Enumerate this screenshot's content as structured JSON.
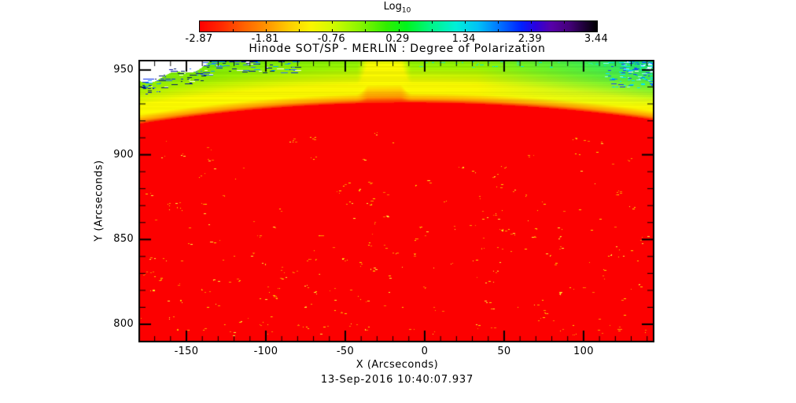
{
  "figure": {
    "background": "#ffffff",
    "colorbar": {
      "title_main": "Log",
      "title_sub": "10",
      "tick_labels": [
        "-2.87",
        "-1.81",
        "-0.76",
        "0.29",
        "1.34",
        "2.39",
        "3.44"
      ],
      "gradient_stops": [
        [
          0.0,
          "#ff0000"
        ],
        [
          0.05,
          "#ff2500"
        ],
        [
          0.11,
          "#ff6000"
        ],
        [
          0.167,
          "#ff9300"
        ],
        [
          0.22,
          "#ffc800"
        ],
        [
          0.28,
          "#fbf500"
        ],
        [
          0.333,
          "#d3fb00"
        ],
        [
          0.4,
          "#8df600"
        ],
        [
          0.47,
          "#30ee00"
        ],
        [
          0.52,
          "#00f51c"
        ],
        [
          0.58,
          "#00f583"
        ],
        [
          0.645,
          "#00efd8"
        ],
        [
          0.7,
          "#00c2f7"
        ],
        [
          0.755,
          "#0072ff"
        ],
        [
          0.81,
          "#0020ff"
        ],
        [
          0.845,
          "#2a00e0"
        ],
        [
          0.885,
          "#5700a8"
        ],
        [
          0.93,
          "#45007a"
        ],
        [
          0.965,
          "#20003c"
        ],
        [
          1.0,
          "#000000"
        ]
      ]
    },
    "plot": {
      "title": "Hinode SOT/SP - MERLIN : Degree of Polarization",
      "x_label": "X (Arcseconds)",
      "y_label": "Y (Arcseconds)",
      "footer": "13-Sep-2016 10:40:07.937"
    }
  },
  "chart_data": {
    "type": "heatmap",
    "title": "Hinode SOT/SP - MERLIN : Degree of Polarization",
    "xlabel": "X (Arcseconds)",
    "ylabel": "Y (Arcseconds)",
    "timestamp": "13-Sep-2016 10:40:07.937",
    "colorbar": {
      "label": "Log10",
      "range": [
        -2.87,
        3.44
      ],
      "tick_values": [
        -2.87,
        -1.81,
        -0.76,
        0.29,
        1.34,
        2.39,
        3.44
      ]
    },
    "xlim": [
      -180.2,
      144.6
    ],
    "ylim": [
      789.3,
      956.0
    ],
    "x_tick_values": [
      -150,
      -100,
      -50,
      0,
      50,
      100
    ],
    "y_tick_values": [
      950,
      900,
      850,
      800
    ],
    "minor_tick_step": 10,
    "grid": false,
    "legend": false,
    "description": "Solar limb scan: saturated red disk (low log10 degree of polarization) filling most of the frame below a curved limb near Y=930; yellow-to-green gradient above the limb; white saturated patch with blue speckle dashes at top-left; cyan/blue speckle dashes at top-right; a faint vertical plume near X=-40; sparse yellow magnetic-network speckles across the red disk.",
    "image_model": {
      "seed": 77,
      "disk_color": "#fc0000",
      "limb_parabola": {
        "a": 0.000228,
        "b": -0.1572,
        "c": 81
      },
      "band_stops": [
        [
          0,
          "#ff2000"
        ],
        [
          4,
          "#ff9800"
        ],
        [
          12,
          "#fbf800"
        ],
        [
          24,
          "#f6f600"
        ],
        [
          46,
          "#96ef00"
        ],
        [
          95,
          "#23d719"
        ],
        [
          210,
          "#00bb2e"
        ]
      ],
      "striation": 0.1,
      "plume": {
        "x0": 276,
        "x1": 348,
        "soft": 16,
        "strength": 0.48
      },
      "white_region": {
        "base": 26,
        "slope": 0.22,
        "amp1": 4,
        "per1": 9,
        "amp2": 3,
        "per2": 23
      },
      "teal": {
        "x_start": 430,
        "y_fade": 60,
        "max_blue": 120
      },
      "white_edge_speckles": {
        "count": 160,
        "x_max": 200,
        "y_off": [
          -5,
          16
        ],
        "len": [
          2,
          10
        ],
        "colors": [
          "#0026f0",
          "#000a9e",
          "#2e6bff",
          "#00a2ff",
          "#ffffff",
          "#001a66"
        ]
      },
      "corner_speckles": {
        "count": 140,
        "x_min": 588,
        "y_max": 34,
        "len": [
          2,
          8
        ],
        "colors": [
          "#00e2ff",
          "#0080ff",
          "#1536ff",
          "#ffffff",
          "#8ef5ff"
        ]
      },
      "top_speckles": {
        "count": 30,
        "x_min": 350,
        "x_max": 600,
        "y_max": 7,
        "len": [
          2,
          6
        ],
        "colors": [
          "#00e8d0",
          "#31e8a0"
        ]
      },
      "disk_speckles": {
        "count": 250,
        "margin_top": 26,
        "colors": [
          "#ffd400",
          "#ff9d00",
          "#ffef3a",
          "#ff7b00"
        ]
      }
    }
  }
}
